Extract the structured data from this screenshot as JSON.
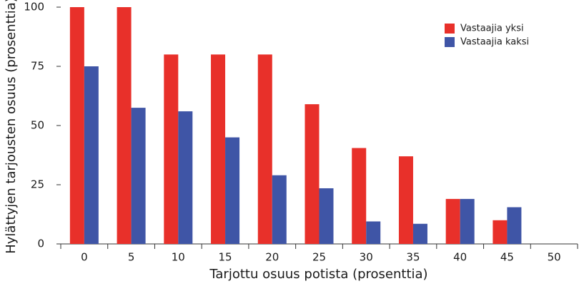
{
  "chart_data": {
    "type": "bar",
    "x_label": "Tarjottu osuus potista (prosenttia)",
    "y_label": "Hylättyjen tarjousten osuus (prosenttia)",
    "categories": [
      "0",
      "5",
      "10",
      "15",
      "20",
      "25",
      "30",
      "35",
      "40",
      "45",
      "50"
    ],
    "series": [
      {
        "name": "Vastaajia yksi",
        "color": "#e8302a",
        "values": [
          100,
          100,
          80,
          80,
          80,
          59,
          40.5,
          37,
          19,
          10,
          0
        ]
      },
      {
        "name": "Vastaajia kaksi",
        "color": "#3f55a6",
        "values": [
          75,
          57.5,
          56,
          45,
          29,
          23.5,
          9.5,
          8.5,
          19,
          15.5,
          0
        ]
      }
    ],
    "ylim": [
      0,
      100
    ],
    "yticks": [
      0,
      25,
      50,
      75,
      100
    ],
    "grid": false,
    "legend": "upper right"
  }
}
